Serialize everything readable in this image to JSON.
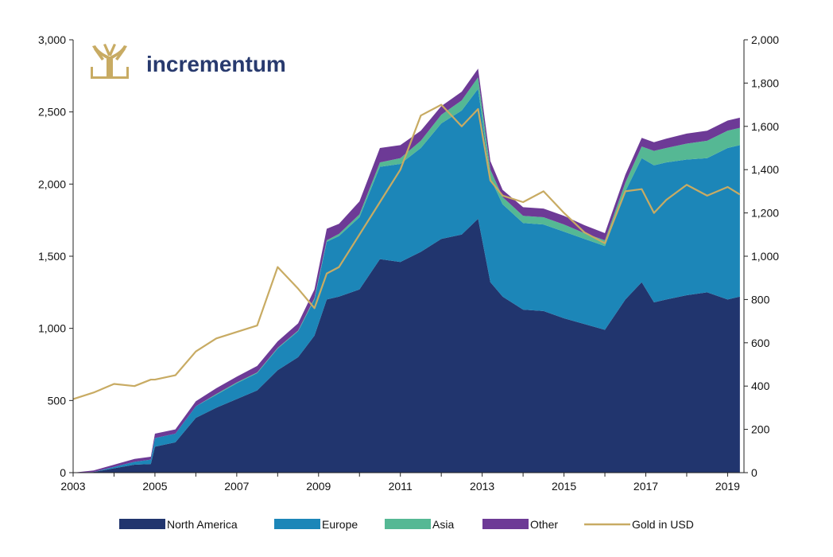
{
  "brand": {
    "name": "incrementum"
  },
  "chart_data": {
    "type": "area",
    "title": "",
    "xlabel": "",
    "ylabel_left": "",
    "ylabel_right": "",
    "xlim": [
      2003,
      2019.4
    ],
    "ylim_left": [
      0,
      3000
    ],
    "ylim_right": [
      0,
      2000
    ],
    "x_ticks": [
      "2003",
      "2005",
      "2007",
      "2009",
      "2011",
      "2013",
      "2015",
      "2017",
      "2019"
    ],
    "y_left_ticks": [
      "0",
      "500",
      "1,000",
      "1,500",
      "2,000",
      "2,500",
      "3,000"
    ],
    "y_right_ticks": [
      "0",
      "200",
      "400",
      "600",
      "800",
      "1,000",
      "1,200",
      "1,400",
      "1,600",
      "1,800",
      "2,000"
    ],
    "grid": false,
    "legend_position": "bottom",
    "x": [
      2003.0,
      2003.5,
      2004.0,
      2004.5,
      2004.9,
      2005.0,
      2005.5,
      2006.0,
      2006.5,
      2007.0,
      2007.5,
      2008.0,
      2008.5,
      2008.9,
      2009.2,
      2009.5,
      2010.0,
      2010.5,
      2011.0,
      2011.5,
      2012.0,
      2012.5,
      2012.9,
      2013.2,
      2013.5,
      2014.0,
      2014.5,
      2015.0,
      2015.5,
      2016.0,
      2016.5,
      2016.9,
      2017.2,
      2017.5,
      2018.0,
      2018.5,
      2019.0,
      2019.3
    ],
    "series": [
      {
        "name": "North America",
        "color": "#21356e",
        "axis": "left",
        "stack": true,
        "values": [
          0,
          5,
          30,
          55,
          60,
          180,
          210,
          380,
          450,
          510,
          570,
          710,
          800,
          950,
          1200,
          1220,
          1270,
          1480,
          1460,
          1530,
          1620,
          1650,
          1760,
          1320,
          1220,
          1130,
          1120,
          1070,
          1030,
          990,
          1200,
          1320,
          1180,
          1200,
          1230,
          1250,
          1200,
          1220
        ]
      },
      {
        "name": "Europe",
        "color": "#1c86b8",
        "axis": "left",
        "stack": true,
        "values": [
          0,
          0,
          10,
          20,
          30,
          60,
          60,
          80,
          90,
          110,
          120,
          150,
          180,
          250,
          400,
          420,
          500,
          640,
          680,
          720,
          800,
          860,
          900,
          720,
          640,
          600,
          600,
          600,
          590,
          580,
          750,
          860,
          950,
          950,
          940,
          930,
          1050,
          1050
        ]
      },
      {
        "name": "Asia",
        "color": "#55b894",
        "axis": "left",
        "stack": true,
        "values": [
          0,
          0,
          0,
          0,
          0,
          0,
          0,
          0,
          5,
          5,
          5,
          5,
          5,
          10,
          10,
          15,
          20,
          30,
          40,
          50,
          60,
          70,
          80,
          60,
          50,
          50,
          50,
          50,
          40,
          40,
          60,
          80,
          100,
          100,
          110,
          120,
          120,
          120
        ]
      },
      {
        "name": "Other",
        "color": "#6d3a96",
        "axis": "left",
        "stack": true,
        "values": [
          0,
          10,
          15,
          20,
          20,
          30,
          30,
          35,
          40,
          40,
          45,
          45,
          50,
          60,
          80,
          70,
          90,
          100,
          90,
          70,
          60,
          60,
          60,
          60,
          50,
          60,
          60,
          60,
          55,
          50,
          55,
          60,
          60,
          65,
          70,
          70,
          70,
          70
        ]
      },
      {
        "name": "Gold in USD",
        "color": "#c8ab63",
        "axis": "right",
        "line": true,
        "values": [
          340,
          370,
          410,
          400,
          430,
          430,
          450,
          560,
          620,
          650,
          680,
          950,
          850,
          760,
          920,
          950,
          1100,
          1250,
          1400,
          1650,
          1700,
          1600,
          1680,
          1350,
          1280,
          1250,
          1300,
          1200,
          1110,
          1060,
          1300,
          1310,
          1200,
          1260,
          1330,
          1280,
          1320,
          1285
        ]
      }
    ]
  },
  "legend": [
    {
      "label": "North America",
      "color": "#21356e",
      "kind": "box"
    },
    {
      "label": "Europe",
      "color": "#1c86b8",
      "kind": "box"
    },
    {
      "label": "Asia",
      "color": "#55b894",
      "kind": "box"
    },
    {
      "label": "Other",
      "color": "#6d3a96",
      "kind": "box"
    },
    {
      "label": "Gold in USD",
      "color": "#c8ab63",
      "kind": "line"
    }
  ]
}
